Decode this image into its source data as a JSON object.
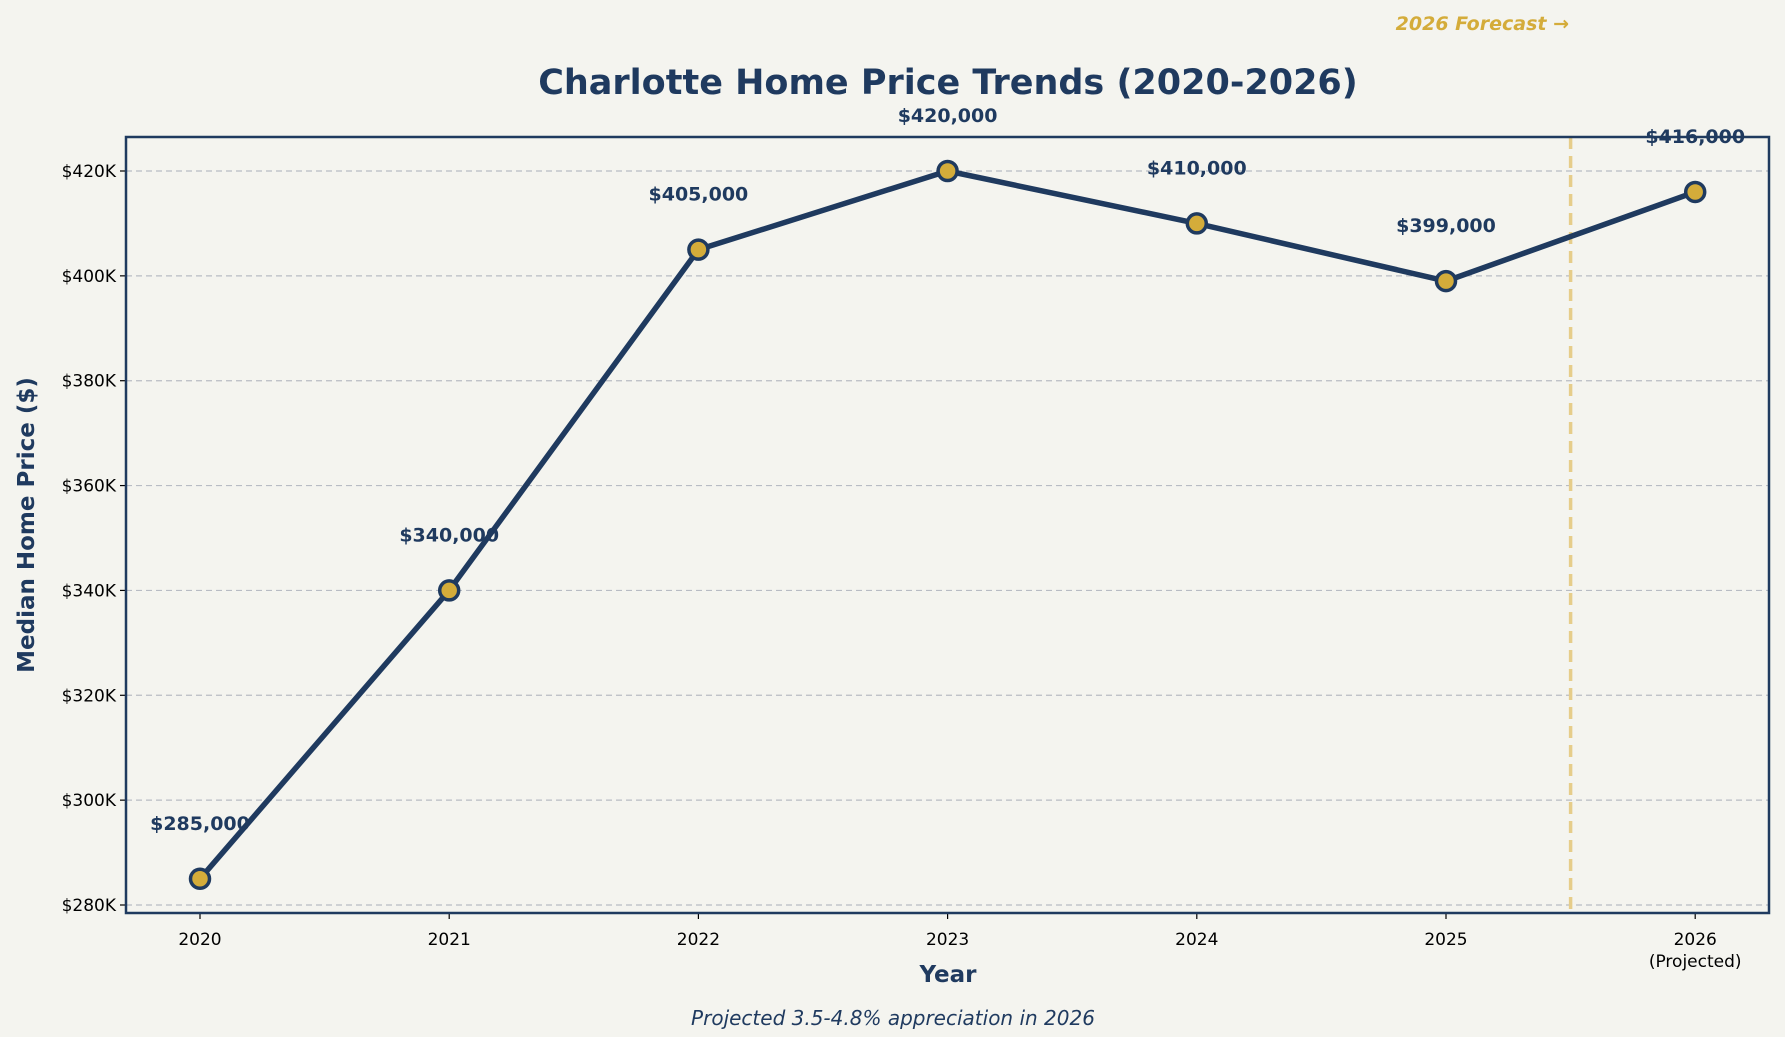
{
  "chart_data": {
    "type": "line",
    "title": "Charlotte Home Price Trends (2020-2026)",
    "xlabel": "Year",
    "ylabel": "Median Home Price ($)",
    "categories": [
      "2020",
      "2021",
      "2022",
      "2023",
      "2024",
      "2025",
      "2026"
    ],
    "category_sublabels": [
      "",
      "",
      "",
      "",
      "",
      "",
      "(Projected)"
    ],
    "values": [
      285000,
      340000,
      405000,
      420000,
      410000,
      399000,
      416000
    ],
    "data_labels": [
      "$285,000",
      "$340,000",
      "$405,000",
      "$420,000",
      "$410,000",
      "$399,000",
      "$416,000"
    ],
    "ylim": [
      278000,
      427000
    ],
    "yticks": [
      280000,
      300000,
      320000,
      340000,
      360000,
      380000,
      400000,
      420000
    ],
    "ytick_labels": [
      "$280K",
      "$300K",
      "$320K",
      "$340K",
      "$360K",
      "$380K",
      "$400K",
      "$420K"
    ],
    "grid": "horizontal dashed",
    "forecast_divider": 2025.5,
    "forecast_label": "2026 Forecast →",
    "footnote": "Projected 3.5-4.8% appreciation in 2026",
    "colors": {
      "line": "#1f3a5f",
      "marker": "#d4ac3a",
      "forecast": "#e6cd8a",
      "grid": "#b8bcc4",
      "background": "#f4f4ef"
    }
  }
}
